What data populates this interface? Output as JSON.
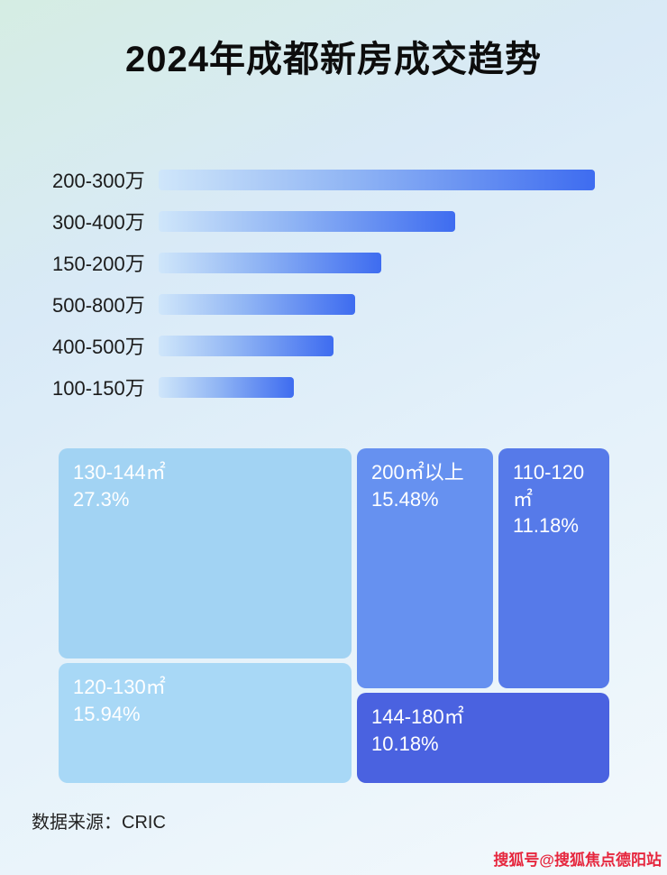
{
  "title": "2024年成都新房成交趋势",
  "footer": {
    "source": "数据来源：CRIC"
  },
  "watermark": "搜狐号@搜狐焦点德阳站",
  "colors": {
    "bar_gradient_start": "#cfe6fa",
    "bar_gradient_end": "#3e6cf0",
    "title_text": "#0d0d0d",
    "treemap_text": "#ffffff",
    "watermark_red": "#e6273e"
  },
  "chart_data": [
    {
      "type": "bar",
      "orientation": "horizontal",
      "title": "2024年成都新房成交趋势",
      "categories": [
        "200-300万",
        "300-400万",
        "150-200万",
        "500-800万",
        "400-500万",
        "100-150万"
      ],
      "relative_lengths_pct": [
        100,
        68,
        51,
        45,
        40,
        31
      ],
      "xlabel": "",
      "ylabel": "",
      "grid": false,
      "legend": false
    },
    {
      "type": "treemap",
      "items": [
        {
          "label": "130-144㎡",
          "value_pct": 27.3,
          "value_label": "27.3%",
          "color": "#a2d3f3"
        },
        {
          "label": "120-130㎡",
          "value_pct": 15.94,
          "value_label": "15.94%",
          "color": "#a8d8f6"
        },
        {
          "label": "200㎡以上",
          "value_pct": 15.48,
          "value_label": "15.48%",
          "color": "#6691f0"
        },
        {
          "label": "110-120㎡",
          "value_pct": 11.18,
          "value_label": "11.18%",
          "color": "#567ae9"
        },
        {
          "label": "144-180㎡",
          "value_pct": 10.18,
          "value_label": "10.18%",
          "color": "#4a62e0"
        }
      ]
    }
  ]
}
